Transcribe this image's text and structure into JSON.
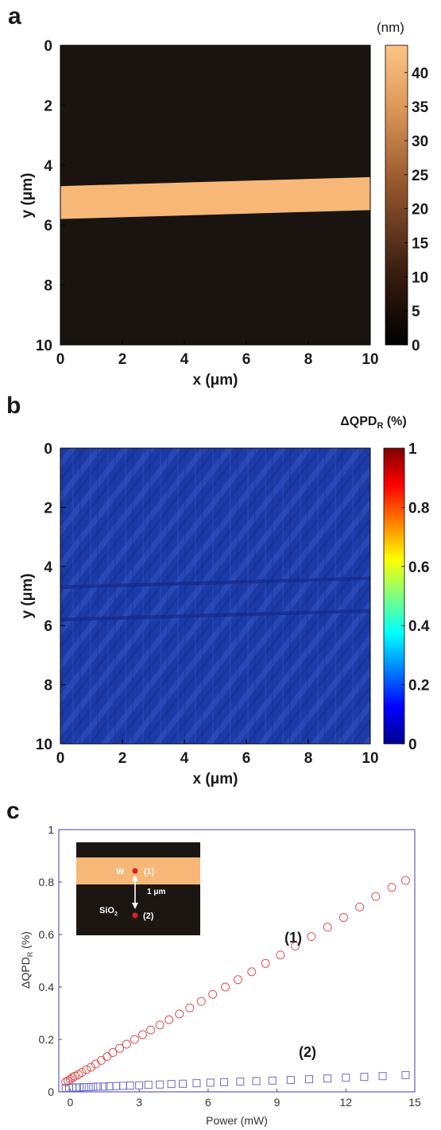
{
  "panels": {
    "a": {
      "letter": "a",
      "colorbar_unit": "(nm)",
      "xlabel": "x (μm)",
      "ylabel": "y (μm)",
      "colorbar_ticks": [
        "0",
        "5",
        "10",
        "15",
        "20",
        "25",
        "30",
        "35",
        "40"
      ]
    },
    "b": {
      "letter": "b",
      "colorbar_unit": "ΔQPD",
      "colorbar_unit_sub": "R",
      "colorbar_unit_suffix": " (%)",
      "xlabel": "x (μm)",
      "ylabel": "y (μm)",
      "colorbar_ticks": [
        "0",
        "0.2",
        "0.4",
        "0.6",
        "0.8",
        "1"
      ]
    },
    "c": {
      "letter": "c",
      "xlabel": "Power (mW)",
      "ylabel": "ΔQPD",
      "ylabel_sub": "R",
      "ylabel_suffix": " (%)",
      "series_label_1": "(1)",
      "series_label_2": "(2)",
      "inset": {
        "w_label": "W",
        "point1_label": "(1)",
        "distance_label": "1 μm",
        "sio2_label": "SiO",
        "sio2_sub": "2",
        "point2_label": "(2)"
      }
    }
  },
  "colors": {
    "series1": "#e05050",
    "series2": "#6a6ad0",
    "axis_c": "#4040a0",
    "stripe": "#f7b877",
    "map_dark": "#1a1410",
    "map_blue": "#1d3ba6"
  },
  "chart_data": [
    {
      "type": "heatmap",
      "panel": "a",
      "title": "",
      "xlabel": "x (μm)",
      "ylabel": "y (μm)",
      "xlim": [
        0,
        10
      ],
      "ylim": [
        0,
        10
      ],
      "y_reversed": true,
      "xticks": [
        "0",
        "2",
        "4",
        "6",
        "8",
        "10"
      ],
      "yticks": [
        "0",
        "2",
        "4",
        "6",
        "8",
        "10"
      ],
      "colorbar": {
        "label": "(nm)",
        "range": [
          0,
          44
        ],
        "ticks": [
          0,
          5,
          10,
          15,
          20,
          25,
          30,
          35,
          40
        ]
      },
      "features": {
        "stripe_height_nm": 44,
        "stripe_center_y_at_x0": 5.25,
        "stripe_center_y_at_x10": 4.95,
        "stripe_width_um": 1.1,
        "background_nm": 0
      }
    },
    {
      "type": "heatmap",
      "panel": "b",
      "title": "",
      "xlabel": "x (μm)",
      "ylabel": "y (μm)",
      "xlim": [
        0,
        10
      ],
      "ylim": [
        0,
        10
      ],
      "y_reversed": true,
      "xticks": [
        "0",
        "2",
        "4",
        "6",
        "8",
        "10"
      ],
      "yticks": [
        "0",
        "2",
        "4",
        "6",
        "8",
        "10"
      ],
      "colorbar": {
        "label": "ΔQPDR (%)",
        "range": [
          0,
          1
        ],
        "ticks": [
          0,
          0.2,
          0.4,
          0.6,
          0.8,
          1
        ]
      },
      "features": {
        "background_value": 0.08
      }
    },
    {
      "type": "scatter",
      "panel": "c",
      "title": "",
      "xlabel": "Power (mW)",
      "ylabel": "ΔQPDR (%)",
      "xlim": [
        -0.5,
        15
      ],
      "ylim": [
        0,
        1
      ],
      "xticks": [
        0,
        3,
        6,
        9,
        12,
        15
      ],
      "yticks": [
        0,
        0.2,
        0.4,
        0.6,
        0.8,
        1
      ],
      "grid": false,
      "series": [
        {
          "name": "(1)",
          "marker": "circle",
          "points": [
            [
              -0.2,
              0.038
            ],
            [
              -0.1,
              0.042
            ],
            [
              0.0,
              0.048
            ],
            [
              0.1,
              0.055
            ],
            [
              0.2,
              0.06
            ],
            [
              0.35,
              0.066
            ],
            [
              0.5,
              0.074
            ],
            [
              0.7,
              0.085
            ],
            [
              0.9,
              0.094
            ],
            [
              1.1,
              0.106
            ],
            [
              1.35,
              0.12
            ],
            [
              1.6,
              0.134
            ],
            [
              1.85,
              0.15
            ],
            [
              2.15,
              0.166
            ],
            [
              2.45,
              0.182
            ],
            [
              2.8,
              0.2
            ],
            [
              3.15,
              0.218
            ],
            [
              3.5,
              0.236
            ],
            [
              3.9,
              0.255
            ],
            [
              4.3,
              0.275
            ],
            [
              4.75,
              0.297
            ],
            [
              5.2,
              0.32
            ],
            [
              5.7,
              0.345
            ],
            [
              6.2,
              0.372
            ],
            [
              6.75,
              0.4
            ],
            [
              7.3,
              0.428
            ],
            [
              7.9,
              0.458
            ],
            [
              8.5,
              0.49
            ],
            [
              9.15,
              0.522
            ],
            [
              9.8,
              0.556
            ],
            [
              10.5,
              0.592
            ],
            [
              11.2,
              0.628
            ],
            [
              11.9,
              0.665
            ],
            [
              12.6,
              0.705
            ],
            [
              13.3,
              0.745
            ],
            [
              14.0,
              0.78
            ],
            [
              14.6,
              0.806
            ]
          ]
        },
        {
          "name": "(2)",
          "marker": "square",
          "points": [
            [
              -0.2,
              0.015
            ],
            [
              -0.05,
              0.016
            ],
            [
              0.1,
              0.016
            ],
            [
              0.25,
              0.017
            ],
            [
              0.4,
              0.017
            ],
            [
              0.6,
              0.018
            ],
            [
              0.8,
              0.018
            ],
            [
              1.0,
              0.019
            ],
            [
              1.2,
              0.02
            ],
            [
              1.45,
              0.02
            ],
            [
              1.7,
              0.021
            ],
            [
              2.0,
              0.022
            ],
            [
              2.3,
              0.023
            ],
            [
              2.6,
              0.024
            ],
            [
              3.0,
              0.025
            ],
            [
              3.4,
              0.027
            ],
            [
              3.9,
              0.028
            ],
            [
              4.4,
              0.03
            ],
            [
              4.9,
              0.031
            ],
            [
              5.5,
              0.033
            ],
            [
              6.1,
              0.035
            ],
            [
              6.7,
              0.037
            ],
            [
              7.4,
              0.039
            ],
            [
              8.1,
              0.041
            ],
            [
              8.8,
              0.043
            ],
            [
              9.6,
              0.045
            ],
            [
              10.4,
              0.048
            ],
            [
              11.2,
              0.051
            ],
            [
              12.0,
              0.054
            ],
            [
              12.8,
              0.057
            ],
            [
              13.6,
              0.06
            ],
            [
              14.6,
              0.064
            ]
          ]
        }
      ]
    }
  ]
}
